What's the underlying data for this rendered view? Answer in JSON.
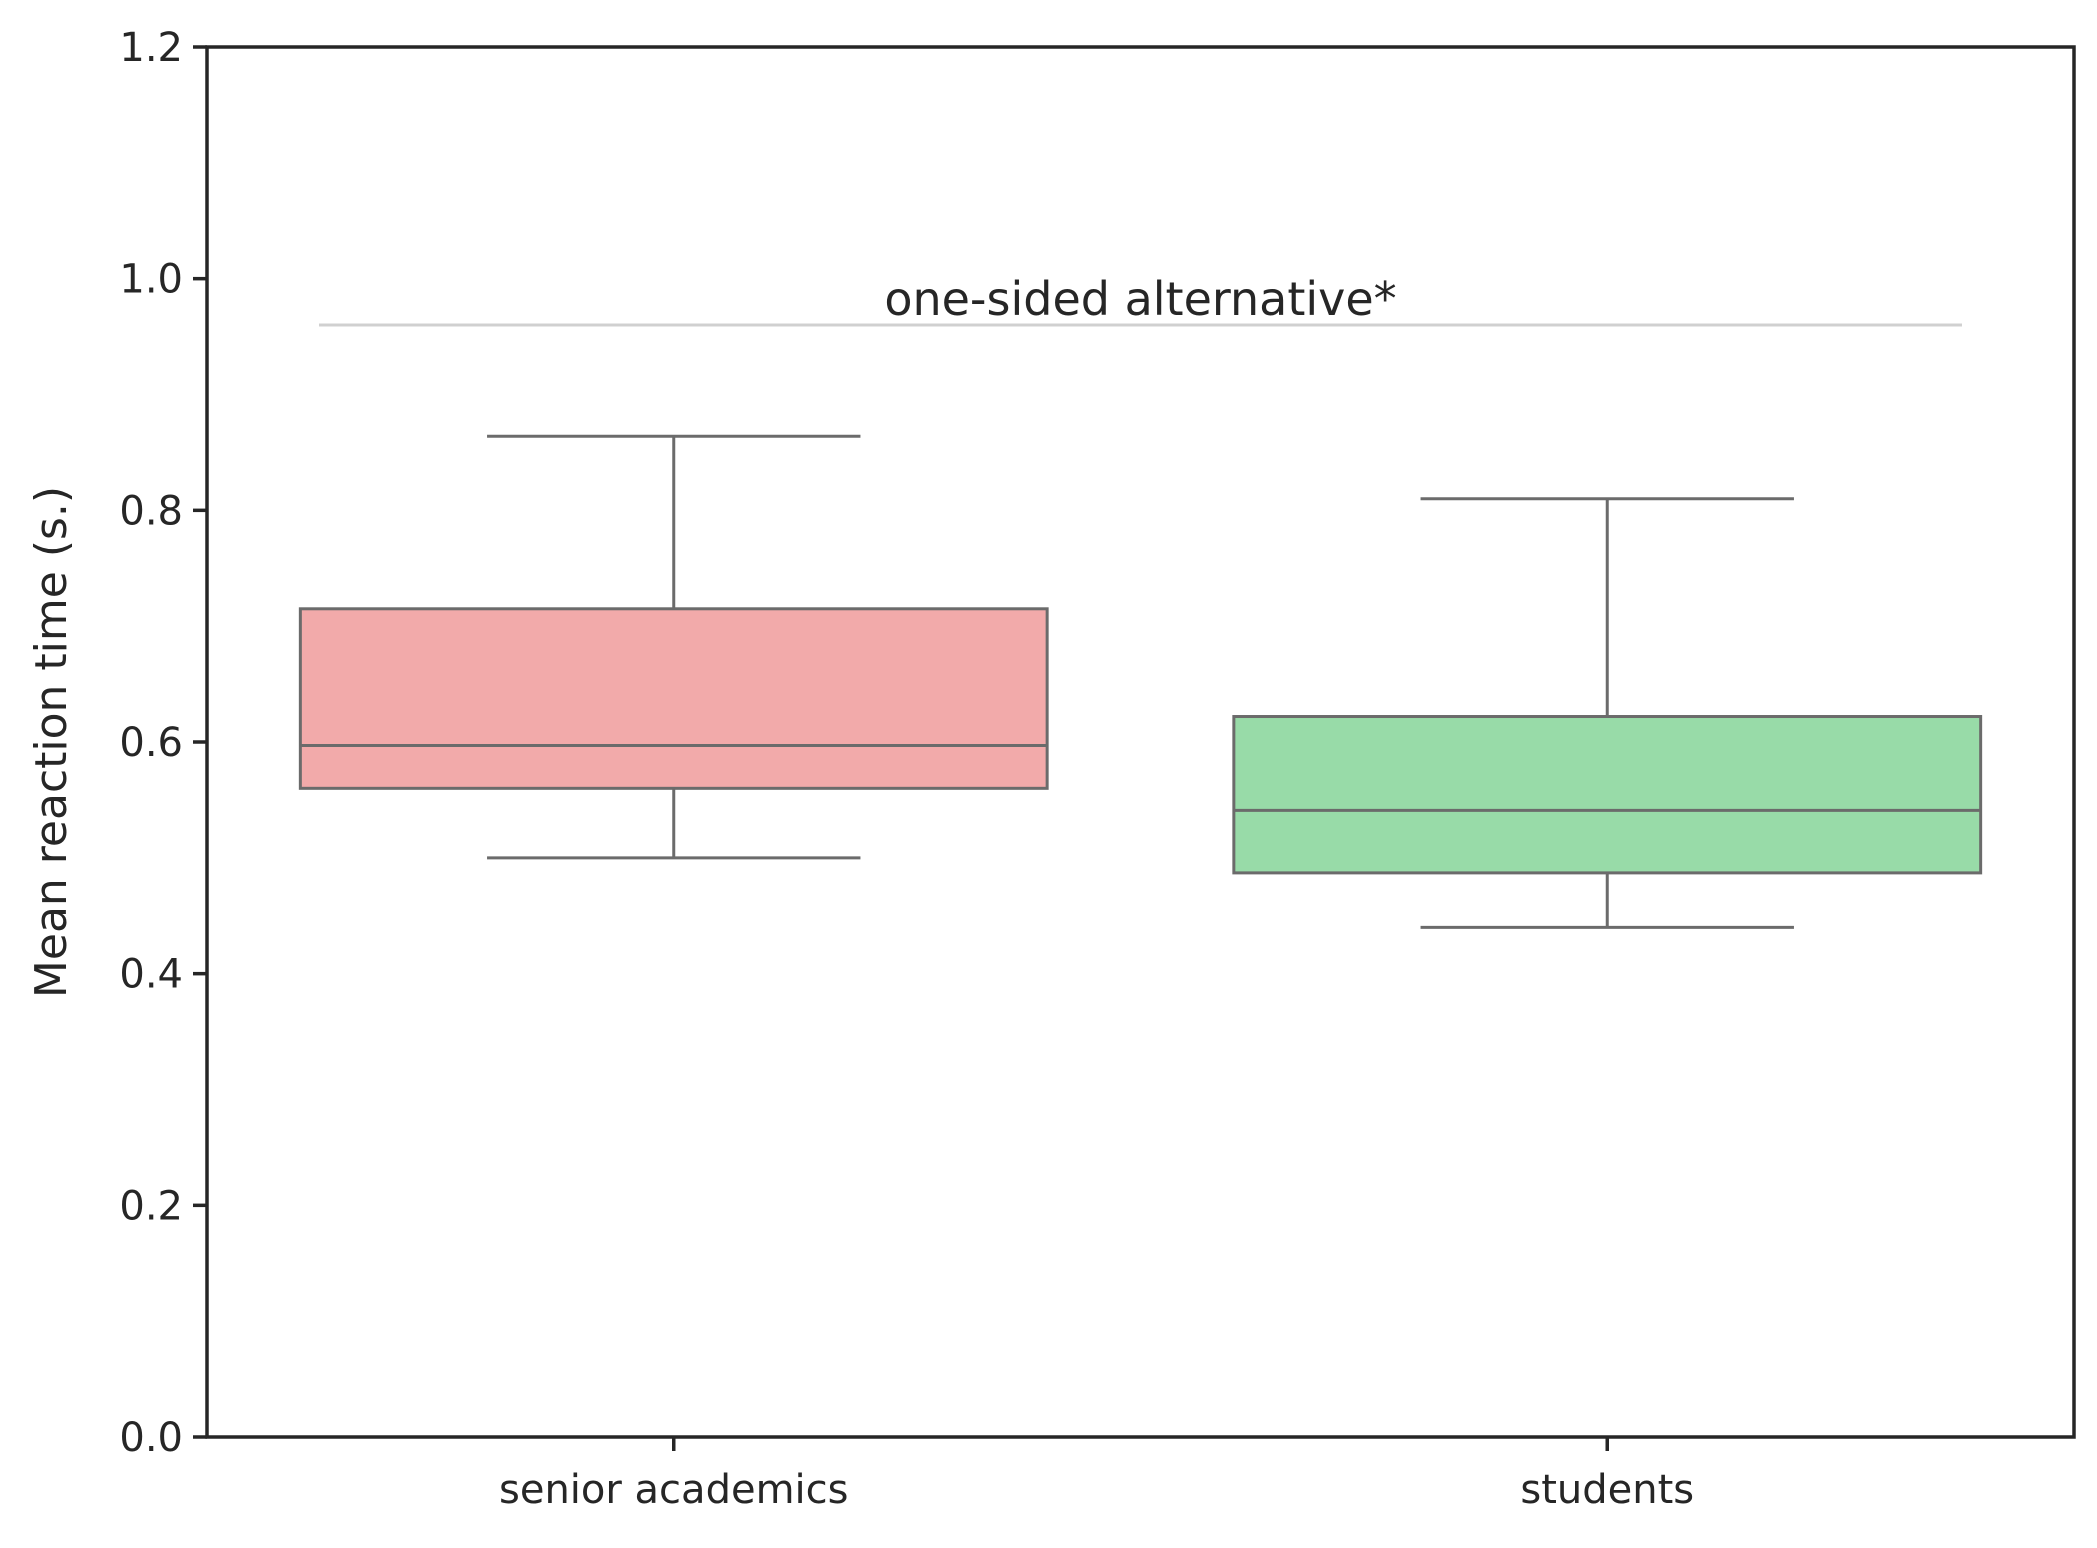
{
  "chart_data": {
    "type": "box",
    "title": "",
    "xlabel": "",
    "ylabel": "Mean reaction time (s.)",
    "ylim": [
      0.0,
      1.2
    ],
    "yticks": [
      0.0,
      0.2,
      0.4,
      0.6,
      0.8,
      1.0,
      1.2
    ],
    "ytick_labels": [
      "0.0",
      "0.2",
      "0.4",
      "0.6",
      "0.8",
      "1.0",
      "1.2"
    ],
    "categories": [
      "senior academics",
      "students"
    ],
    "boxes": [
      {
        "category": "senior academics",
        "whisker_low": 0.5,
        "q1": 0.56,
        "median": 0.597,
        "q3": 0.715,
        "whisker_high": 0.864,
        "color": "#f2aaaa"
      },
      {
        "category": "students",
        "whisker_low": 0.44,
        "q1": 0.487,
        "median": 0.541,
        "q3": 0.622,
        "whisker_high": 0.81,
        "color": "#98dba8"
      }
    ],
    "annotation": {
      "text": "one-sided alternative*",
      "y": 0.96,
      "line_color": "#d0d0d0"
    },
    "grid": false,
    "legend": "none"
  }
}
